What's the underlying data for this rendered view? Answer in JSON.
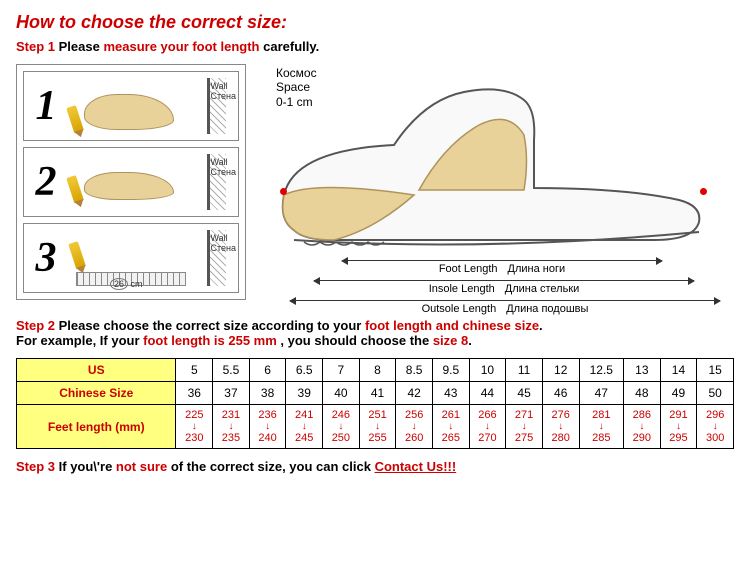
{
  "title": "How to choose the correct size:",
  "step1": {
    "label": "Step 1",
    "before": "Please ",
    "bold": "measure your foot length",
    "after": " carefully."
  },
  "panels": {
    "wall_en": "Wall",
    "wall_ru": "Стена",
    "n1": "1",
    "n2": "2",
    "n3": "3",
    "ruler_label": "26",
    "ruler_unit": "cm"
  },
  "diagram": {
    "space_ru": "Космос",
    "space_en": "Space",
    "space_val": "0-1 cm",
    "foot_en": "Foot Length",
    "foot_ru": "Длина ноги",
    "insole_en": "Insole Length",
    "insole_ru": "Длина стельки",
    "outsole_en": "Outsole Length",
    "outsole_ru": "Длина подошвы"
  },
  "step2": {
    "label": "Step 2",
    "t1": "Please choose the correct size according to your ",
    "b1": "foot length and chinese size",
    "t2": ".",
    "eg1": "For example, If your ",
    "eg_b1": "foot length is 255 mm",
    "eg2": " , you should choose the ",
    "eg_b2": "size 8",
    "eg3": "."
  },
  "table": {
    "headers": [
      "US",
      "Chinese Size",
      "Feet length (mm)"
    ],
    "us": [
      "5",
      "5.5",
      "6",
      "6.5",
      "7",
      "8",
      "8.5",
      "9.5",
      "10",
      "11",
      "12",
      "12.5",
      "13",
      "14",
      "15"
    ],
    "chinese": [
      "36",
      "37",
      "38",
      "39",
      "40",
      "41",
      "42",
      "43",
      "44",
      "45",
      "46",
      "47",
      "48",
      "49",
      "50"
    ],
    "feet_lo": [
      "225",
      "231",
      "236",
      "241",
      "246",
      "251",
      "256",
      "261",
      "266",
      "271",
      "276",
      "281",
      "286",
      "291",
      "296"
    ],
    "feet_hi": [
      "230",
      "235",
      "240",
      "245",
      "250",
      "255",
      "260",
      "265",
      "270",
      "275",
      "280",
      "285",
      "290",
      "295",
      "300"
    ],
    "header_bg": "#ffff80",
    "header_color": "#cc0000",
    "feet_color": "#cc0000"
  },
  "step3": {
    "label": "Step 3",
    "t1": "If you\\'re ",
    "b1": "not sure",
    "t2": " of the correct size, you can click ",
    "link": "Contact Us!!!"
  },
  "colors": {
    "red": "#cc0000",
    "foot_fill": "#e9d29a",
    "foot_stroke": "#af935c",
    "shoe_stroke": "#555555"
  }
}
